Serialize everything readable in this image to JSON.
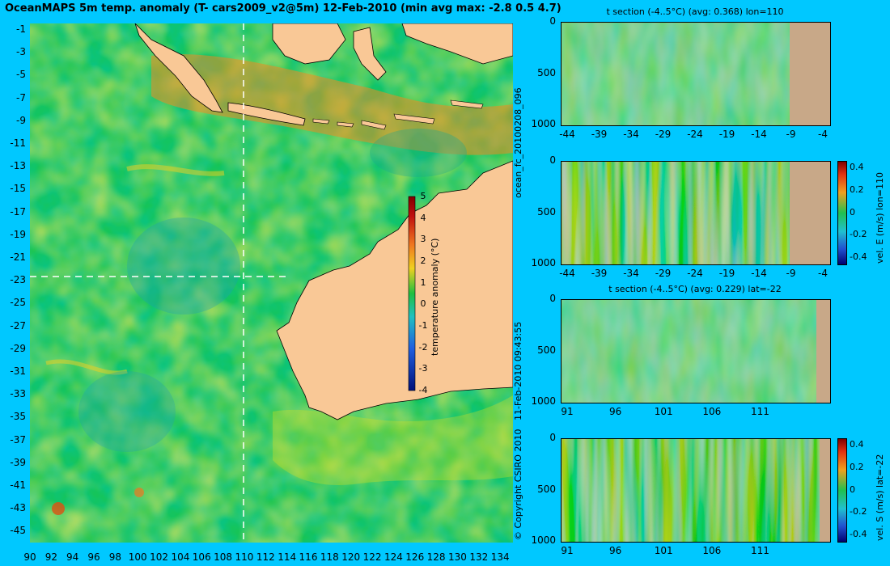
{
  "header": {
    "title": "OceanMAPS 5m temp. anomaly (T- cars2009_v2@5m) 12-Feb-2010 (min avg max: -2.8 0.5 4.7)"
  },
  "map": {
    "lat_ticks": [
      "-1",
      "-3",
      "-5",
      "-7",
      "-9",
      "-11",
      "-13",
      "-15",
      "-17",
      "-19",
      "-21",
      "-23",
      "-25",
      "-27",
      "-29",
      "-31",
      "-33",
      "-35",
      "-37",
      "-39",
      "-41",
      "-43",
      "-45"
    ],
    "lon_ticks": [
      "90",
      "92",
      "94",
      "96",
      "98",
      "100",
      "102",
      "104",
      "106",
      "108",
      "110",
      "112",
      "114",
      "116",
      "118",
      "120",
      "122",
      "124",
      "126",
      "128",
      "130",
      "132",
      "134"
    ],
    "section_lon": "110",
    "section_lat": "-22",
    "colorbar": {
      "ticks": [
        "5",
        "4",
        "3",
        "2",
        "1",
        "0",
        "-1",
        "-2",
        "-3",
        "-4"
      ],
      "label": "temperature anomaly (°C)"
    },
    "colors": {
      "land": "#f9c896",
      "ocean_base": "#17c454",
      "background": "#00c8ff"
    }
  },
  "side_texts": {
    "copyright": "© Copyright CSIRO 2010",
    "timestamp": "11-Feb-2010 09:43:55",
    "forecast_id": "ocean_fc_20100208_096"
  },
  "panels": [
    {
      "title": "t section (-4..5°C) (avg: 0.368) lon=110",
      "y_ticks": [
        "0",
        "500",
        "1000"
      ],
      "x_ticks": [
        "-44",
        "-39",
        "-34",
        "-29",
        "-24",
        "-19",
        "-14",
        "-9",
        "-4"
      ],
      "colorbar": null
    },
    {
      "title": "",
      "y_ticks": [
        "0",
        "500",
        "1000"
      ],
      "x_ticks": [
        "-44",
        "-39",
        "-34",
        "-29",
        "-24",
        "-19",
        "-14",
        "-9",
        "-4"
      ],
      "colorbar": {
        "ticks": [
          "0.4",
          "0.2",
          "0",
          "-0.2",
          "-0.4"
        ],
        "label": "vel. E (m/s) lon=110"
      }
    },
    {
      "title": "t section (-4..5°C) (avg: 0.229) lat=-22",
      "y_ticks": [
        "0",
        "500",
        "1000"
      ],
      "x_ticks": [
        "91",
        "96",
        "101",
        "106",
        "111"
      ],
      "colorbar": null
    },
    {
      "title": "",
      "y_ticks": [
        "0",
        "500",
        "1000"
      ],
      "x_ticks": [
        "91",
        "96",
        "101",
        "106",
        "111"
      ],
      "colorbar": {
        "ticks": [
          "0.4",
          "0.2",
          "0",
          "-0.2",
          "-0.4"
        ],
        "label": "vel. S (m/s) lat=-22"
      }
    }
  ]
}
